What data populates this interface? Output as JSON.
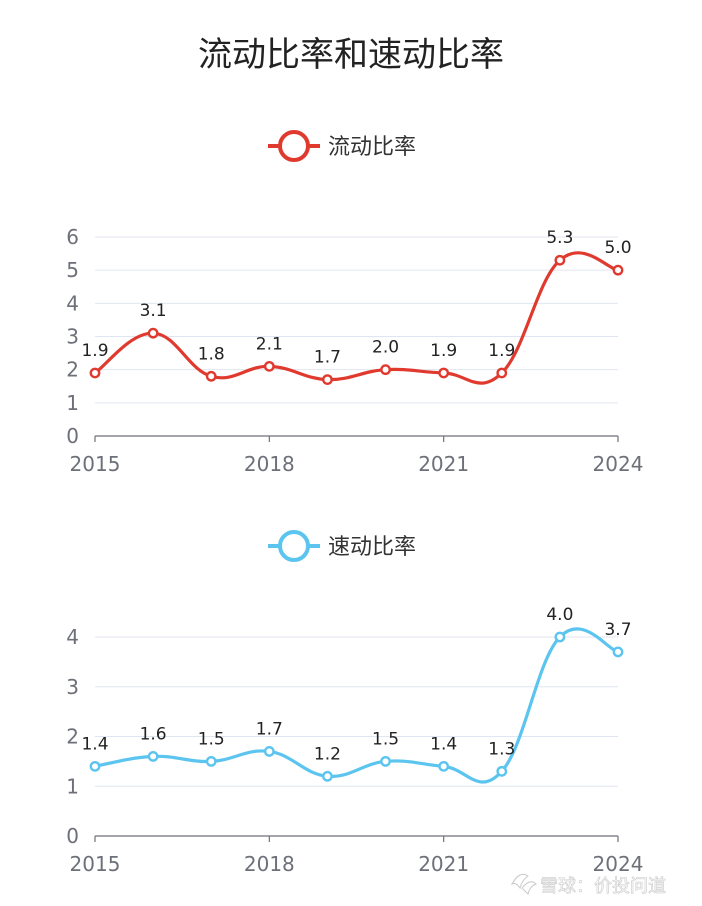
{
  "chart_data": {
    "title": "流动比率和速动比率",
    "type": "line",
    "watermark": "雪球：价投问道",
    "panels": [
      {
        "series_name": "流动比率",
        "color": "#e03a2f",
        "x": [
          2015,
          2016,
          2017,
          2018,
          2019,
          2020,
          2021,
          2022,
          2023,
          2024
        ],
        "values": [
          1.9,
          3.1,
          1.8,
          2.1,
          1.7,
          2.0,
          1.9,
          1.9,
          5.3,
          5.0
        ],
        "data_labels": [
          "1.9",
          "3.1",
          "1.8",
          "2.1",
          "1.7",
          "2.0",
          "1.9",
          "1.9",
          "5.3",
          "5.0"
        ],
        "xticks": [
          "2015",
          "2018",
          "2021",
          "2024"
        ],
        "yticks": [
          "0",
          "1",
          "2",
          "3",
          "4",
          "5",
          "6"
        ],
        "ylim": [
          0,
          6
        ]
      },
      {
        "series_name": "速动比率",
        "color": "#5bc4ef",
        "x": [
          2015,
          2016,
          2017,
          2018,
          2019,
          2020,
          2021,
          2022,
          2023,
          2024
        ],
        "values": [
          1.4,
          1.6,
          1.5,
          1.7,
          1.2,
          1.5,
          1.4,
          1.3,
          4.0,
          3.7
        ],
        "data_labels": [
          "1.4",
          "1.6",
          "1.5",
          "1.7",
          "1.2",
          "1.5",
          "1.4",
          "1.3",
          "4.0",
          "3.7"
        ],
        "xticks": [
          "2015",
          "2018",
          "2021",
          "2024"
        ],
        "yticks": [
          "0",
          "1",
          "2",
          "3",
          "4"
        ],
        "ylim": [
          0,
          4
        ]
      }
    ]
  }
}
